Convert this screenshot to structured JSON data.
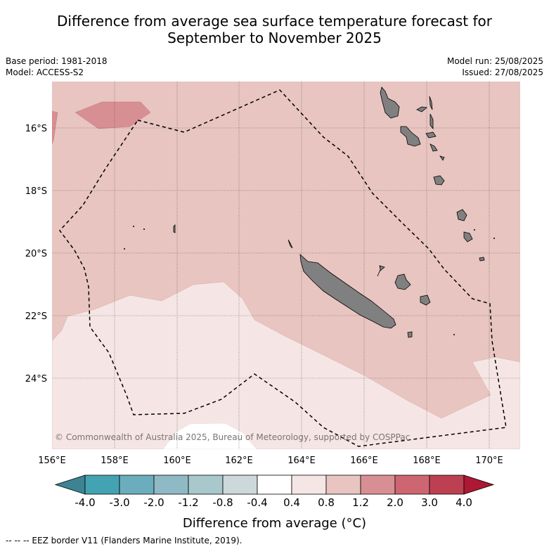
{
  "title_line1": "Difference from average sea surface temperature forecast for",
  "title_line2": "September to November 2025",
  "meta_left": [
    "Base period: 1981-2018",
    "Model: ACCESS-S2"
  ],
  "meta_right": [
    "Model run: 25/08/2025",
    "Issued: 27/08/2025"
  ],
  "copyright": "© Commonwealth of Australia 2025, Bureau of Meteorology, supported by COSPPac",
  "lon_ticks": [
    "156°E",
    "158°E",
    "160°E",
    "162°E",
    "164°E",
    "166°E",
    "168°E",
    "170°E"
  ],
  "lat_ticks": [
    "16°S",
    "18°S",
    "20°S",
    "22°S",
    "24°S"
  ],
  "colorbar": {
    "title": "Difference from average (°C)",
    "tick_labels": [
      "-4.0",
      "-3.0",
      "-2.0",
      "-1.2",
      "-0.8",
      "-0.4",
      "0.4",
      "0.8",
      "1.2",
      "2.0",
      "3.0",
      "4.0"
    ],
    "colors": [
      "#3c8494",
      "#44a3b3",
      "#6badbc",
      "#8fb9c5",
      "#a8c8cc",
      "#cdd8da",
      "#ffffff",
      "#f5e6e5",
      "#e8c5c0",
      "#d88f94",
      "#cd6670",
      "#bd4052",
      "#ad1834"
    ]
  },
  "legend_note": "--  --  -- EEZ border V11 (Flanders Marine Institute, 2019).",
  "colors": {
    "warm_04_08": "#f5e6e5",
    "warm_08_12": "#e8c5c0",
    "warm_12_20": "#d88f94",
    "land": "#808080"
  }
}
